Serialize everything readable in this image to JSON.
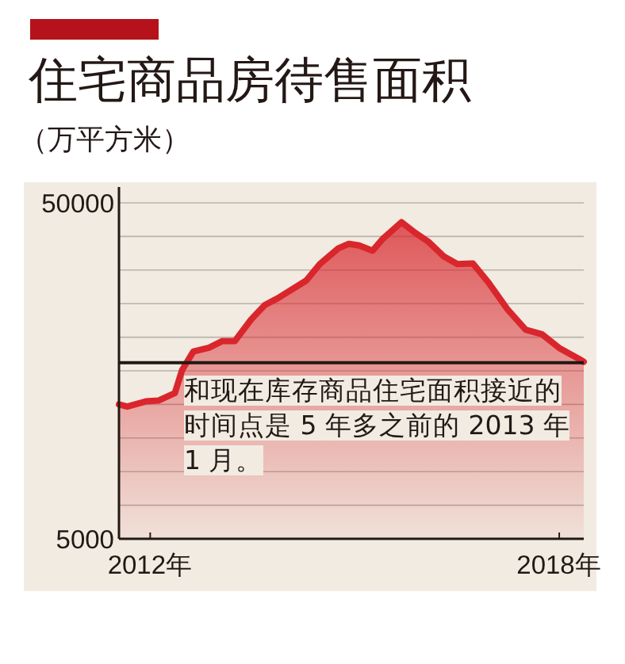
{
  "chart_data": {
    "type": "area",
    "title": "住宅商品房待售面积",
    "subtitle": "（万平方米）",
    "annotations": [
      "和现在库存商品住宅面积接近的时间点是 5 年多之前的 2013 年 1 月。"
    ],
    "x": [
      2012.08,
      2012.19,
      2012.44,
      2012.61,
      2012.83,
      2012.93,
      2013.08,
      2013.29,
      2013.47,
      2013.64,
      2013.86,
      2014.04,
      2014.21,
      2014.6,
      2014.78,
      2015.03,
      2015.17,
      2015.31,
      2015.49,
      2015.63,
      2015.88,
      2016.06,
      2016.24,
      2016.45,
      2016.63,
      2016.84,
      2017.05,
      2017.3,
      2017.55,
      2017.77,
      2018.01,
      2018.3,
      2018.33
    ],
    "values": [
      23000,
      22700,
      23400,
      23500,
      24500,
      27600,
      30100,
      30600,
      31500,
      31500,
      34400,
      36300,
      37200,
      39600,
      41800,
      43900,
      44500,
      44300,
      43600,
      45200,
      47400,
      46000,
      44800,
      42800,
      41800,
      41900,
      39300,
      35800,
      33000,
      32400,
      30500,
      28900,
      28700
    ],
    "color": "#d9262c",
    "xlim": [
      2012.08,
      2018.33
    ],
    "xticks": [
      {
        "value": 2012.5,
        "label": "2012年"
      },
      {
        "value": 2018,
        "label": "2018年"
      }
    ],
    "ylim": [
      5000,
      50000
    ],
    "yticks": [
      5000,
      {
        "value": 9500,
        "label": null
      },
      {
        "value": 14000,
        "label": null
      },
      {
        "value": 18500,
        "label": null
      },
      {
        "value": 23000,
        "label": null
      },
      {
        "value": 27500,
        "label": null
      },
      {
        "value": 32000,
        "label": null
      },
      {
        "value": 36500,
        "label": null
      },
      {
        "value": 41000,
        "label": null
      },
      {
        "value": 45500,
        "label": null
      },
      50000
    ],
    "grid": "y",
    "ref_lines": [
      {
        "axis": "y",
        "value": 28600,
        "color": "#231815"
      }
    ]
  }
}
